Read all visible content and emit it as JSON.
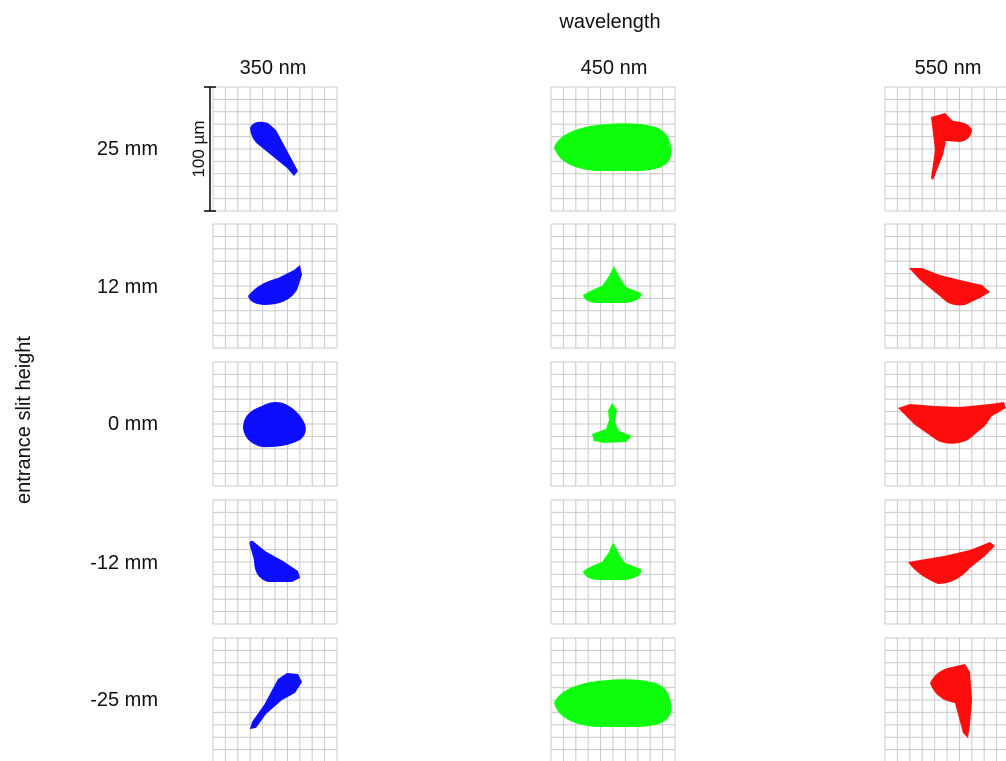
{
  "figure": {
    "column_axis_label": "wavelength",
    "row_axis_label": "entrance slit height",
    "columns": [
      {
        "label": "350 nm",
        "color": "#0000ff"
      },
      {
        "label": "450 nm",
        "color": "#00ff00"
      },
      {
        "label": "550 nm",
        "color": "#ff0000"
      }
    ],
    "rows": [
      {
        "label": "25 mm"
      },
      {
        "label": "12 mm"
      },
      {
        "label": "0 mm"
      },
      {
        "label": "-12 mm"
      },
      {
        "label": "-25 mm"
      }
    ],
    "scale_bar": {
      "label": "100 µm"
    },
    "grid_color": "#c8c8c8",
    "spot_shapes": [
      [
        "wedge-diagonal-down",
        "wide-ellipse",
        "comma-right"
      ],
      [
        "wedge-up-right",
        "small-peak",
        "wedge-down-right"
      ],
      [
        "round-dome",
        "narrow-stem",
        "wide-crescent"
      ],
      [
        "wedge-down-left",
        "small-peak",
        "wedge-up-left"
      ],
      [
        "wedge-up-left-narrow",
        "wide-ellipse",
        "comma-down"
      ]
    ]
  }
}
